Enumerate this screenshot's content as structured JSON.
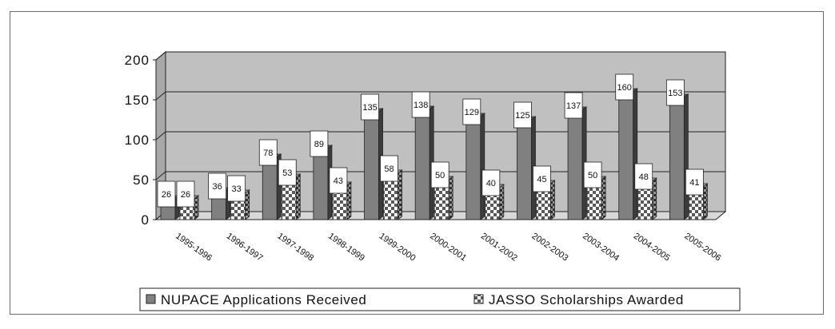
{
  "chart_data": {
    "type": "bar",
    "categories": [
      "1995-1996",
      "1996-1997",
      "1997-1998",
      "1998-1999",
      "1999-2000",
      "2000-2001",
      "2001-2002",
      "2002-2003",
      "2003-2004",
      "2004-2005",
      "2005-2006"
    ],
    "series": [
      {
        "name": "NUPACE Applications Received",
        "values": [
          26,
          36,
          78,
          89,
          135,
          138,
          129,
          125,
          137,
          160,
          153
        ],
        "color": "#808080"
      },
      {
        "name": "JASSO Scholarships Awarded",
        "values": [
          26,
          33,
          53,
          43,
          58,
          50,
          40,
          45,
          50,
          48,
          41
        ],
        "color": "#ffffff",
        "pattern": "checkered"
      }
    ],
    "ylim": [
      0,
      200
    ],
    "yticks": [
      "0",
      "50",
      "100",
      "150",
      "200"
    ],
    "grid": true,
    "legend": "bottom",
    "colors": {
      "wall": "#c0c0c0",
      "floor": "#d8d8d8",
      "bar_dark": "#808080",
      "bar_side": "#3c3c3c"
    }
  }
}
